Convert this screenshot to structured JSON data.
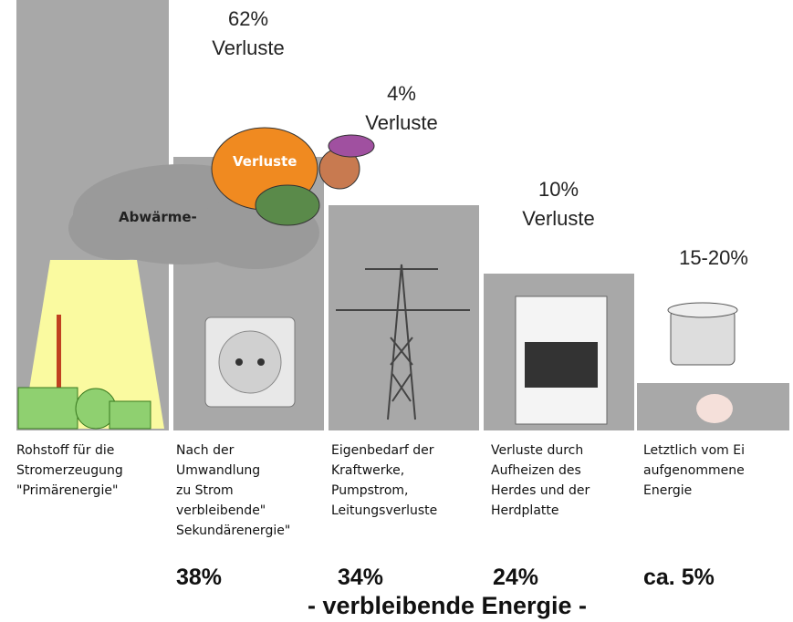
{
  "losses": [
    {
      "percent": "62%",
      "label": "Verluste"
    },
    {
      "percent": "4%",
      "label": "Verluste"
    },
    {
      "percent": "10%",
      "label": "Verluste"
    },
    {
      "percent": "15-20%"
    }
  ],
  "illustration": {
    "cloud_label": "Abwärme-",
    "figure_label": "Verluste"
  },
  "stages": [
    [
      "Rohstoff für die",
      "Stromerzeugung",
      "\"Primärenergie\""
    ],
    [
      "Nach der",
      "Umwandlung",
      "zu Strom",
      "verbleibende\"",
      "Sekundärenergie\""
    ],
    [
      "Eigenbedarf der",
      "Kraftwerke,",
      "Pumpstrom,",
      "Leitungsverluste"
    ],
    [
      "Verluste durch",
      "Aufheizen des",
      "Herdes und der",
      "Herdplatte"
    ],
    [
      "Letztlich vom Ei",
      "aufgenommene",
      "Energie"
    ]
  ],
  "remaining": [
    "38%",
    "34%",
    "24%",
    "ca. 5%"
  ],
  "footer": "- verbleibende Energie -"
}
